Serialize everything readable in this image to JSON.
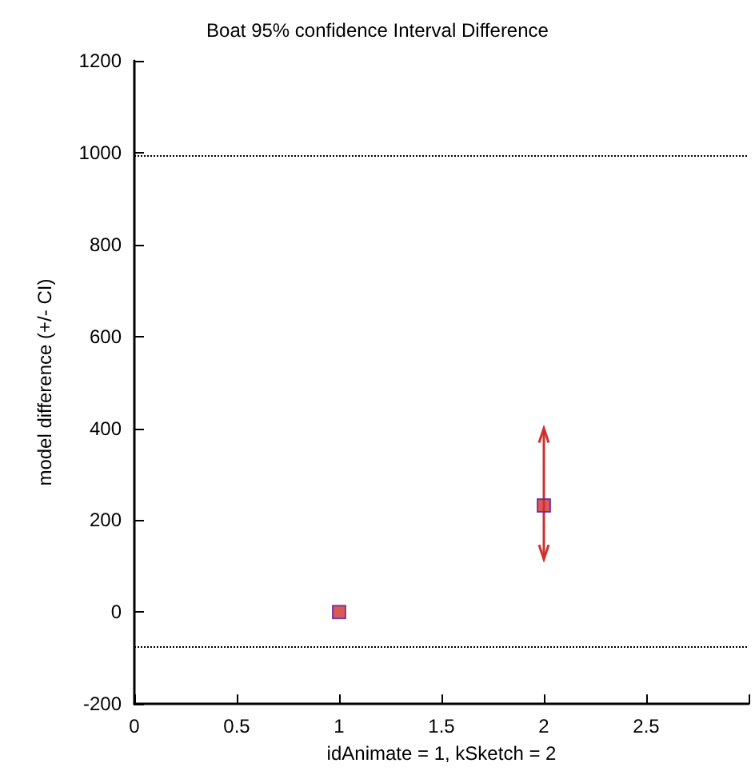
{
  "chart_data": {
    "type": "scatter",
    "title": "Boat 95% confidence Interval Difference",
    "xlabel": "idAnimate = 1, kSketch = 2",
    "ylabel": "model difference (+/- CI)",
    "x": [
      1,
      2
    ],
    "values": [
      0,
      232
    ],
    "errors": [
      null,
      [
        115,
        400
      ]
    ],
    "color": "#d03030",
    "marker": "square",
    "xlim": [
      0,
      3
    ],
    "xticks": [
      0,
      0.5,
      1,
      1.5,
      2,
      2.5,
      {
        "value": 3,
        "label": null
      }
    ],
    "ylim": [
      -200,
      1200
    ],
    "yticks": [
      -200,
      0,
      200,
      400,
      600,
      800,
      1000,
      1200
    ],
    "ref_lines": [
      {
        "axis": "y",
        "value": 995,
        "line_style": "dotted",
        "color": "#000000"
      },
      {
        "axis": "y",
        "value": -75,
        "line_style": "dotted",
        "color": "#000000"
      }
    ],
    "grid": false
  }
}
